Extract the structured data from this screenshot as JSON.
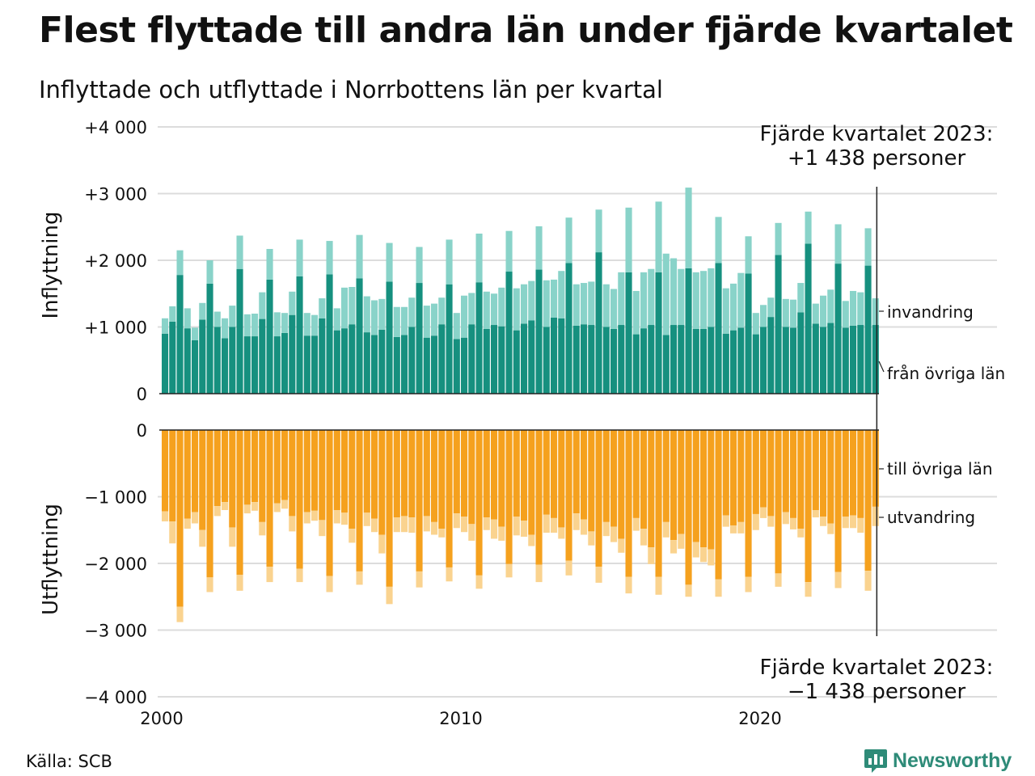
{
  "title": "Flest flyttade till andra län under fjärde kvartalet",
  "subtitle": "Inflyttade och utflyttade i Norrbottens län per kvartal",
  "source": "Källa: SCB",
  "brand": {
    "name": "Newsworthy",
    "icon": "newsworthy-logo-icon"
  },
  "colors": {
    "fran_ovriga_lan": "#16907f",
    "invandring": "#89d3c9",
    "till_ovriga_lan": "#f5a11e",
    "utvandring": "#fad38f",
    "grid": "#dcdcdc"
  },
  "chart_data": {
    "type": "bar",
    "stacked": true,
    "x_start": 2000,
    "x_step": 0.25,
    "xticks": [
      "2000",
      "2010",
      "2020"
    ],
    "xtick_values": [
      2000,
      2010,
      2020
    ],
    "grid": true,
    "top_panel": {
      "ylabel": "Inflyttning",
      "ylim": [
        0,
        4000
      ],
      "yticks": [
        "0",
        "+1 000",
        "+2 000",
        "+3 000",
        "+4 000"
      ],
      "ytick_values": [
        0,
        1000,
        2000,
        3000,
        4000
      ],
      "series": [
        {
          "name": "från övriga län",
          "key": "fran_ovriga_lan",
          "values": [
            900,
            1080,
            1780,
            980,
            800,
            1110,
            1650,
            1000,
            830,
            1000,
            1870,
            860,
            860,
            1120,
            1710,
            860,
            910,
            1180,
            1760,
            870,
            870,
            1130,
            1790,
            950,
            980,
            1040,
            1730,
            920,
            880,
            960,
            1680,
            850,
            880,
            1000,
            1660,
            840,
            870,
            1040,
            1640,
            820,
            840,
            1040,
            1670,
            970,
            1030,
            1010,
            1830,
            950,
            1050,
            1100,
            1860,
            1000,
            1140,
            1130,
            1960,
            1020,
            1040,
            1030,
            2120,
            1000,
            970,
            1030,
            1820,
            890,
            980,
            1030,
            1820,
            880,
            1030,
            1030,
            1880,
            970,
            970,
            1000,
            1960,
            900,
            950,
            990,
            1800,
            890,
            1000,
            1150,
            2080,
            1000,
            990,
            1220,
            2250,
            1050,
            1000,
            1060,
            1950,
            990,
            1020,
            1030,
            1920,
            1030
          ]
        },
        {
          "name": "invandring",
          "key": "invandring",
          "values": [
            230,
            230,
            370,
            300,
            190,
            250,
            350,
            230,
            300,
            320,
            500,
            330,
            340,
            400,
            460,
            360,
            300,
            350,
            550,
            340,
            310,
            300,
            500,
            330,
            610,
            560,
            650,
            540,
            520,
            460,
            580,
            450,
            420,
            440,
            540,
            480,
            480,
            400,
            670,
            390,
            630,
            470,
            730,
            560,
            470,
            580,
            610,
            630,
            590,
            590,
            650,
            700,
            570,
            710,
            680,
            620,
            620,
            650,
            640,
            640,
            600,
            790,
            970,
            650,
            840,
            840,
            1060,
            1220,
            1000,
            840,
            1210,
            850,
            870,
            880,
            690,
            680,
            700,
            820,
            560,
            320,
            330,
            290,
            480,
            420,
            420,
            440,
            480,
            300,
            470,
            500,
            590,
            400,
            520,
            490,
            560,
            400
          ]
        }
      ]
    },
    "bottom_panel": {
      "ylabel": "Utflyttning",
      "ylim": [
        -4000,
        0
      ],
      "yticks": [
        "0",
        "−1 000",
        "−2 000",
        "−3 000",
        "−4 000"
      ],
      "ytick_values": [
        0,
        -1000,
        -2000,
        -3000,
        -4000
      ],
      "series": [
        {
          "name": "till övriga län",
          "key": "till_ovriga_lan",
          "values": [
            -1220,
            -1370,
            -2650,
            -1330,
            -1230,
            -1500,
            -2210,
            -1140,
            -1080,
            -1460,
            -2170,
            -1120,
            -1080,
            -1380,
            -2050,
            -1100,
            -1050,
            -1290,
            -2080,
            -1230,
            -1210,
            -1350,
            -2190,
            -1200,
            -1240,
            -1480,
            -2120,
            -1240,
            -1330,
            -1570,
            -2350,
            -1310,
            -1290,
            -1310,
            -2120,
            -1290,
            -1380,
            -1480,
            -2060,
            -1250,
            -1300,
            -1410,
            -2180,
            -1310,
            -1340,
            -1450,
            -2010,
            -1300,
            -1360,
            -1570,
            -2020,
            -1270,
            -1320,
            -1460,
            -1960,
            -1250,
            -1340,
            -1520,
            -2050,
            -1380,
            -1450,
            -1630,
            -2200,
            -1320,
            -1480,
            -1760,
            -2200,
            -1380,
            -1650,
            -1560,
            -2320,
            -1680,
            -1760,
            -1790,
            -2240,
            -1280,
            -1430,
            -1380,
            -2200,
            -1260,
            -1160,
            -1290,
            -2150,
            -1230,
            -1320,
            -1480,
            -2280,
            -1200,
            -1300,
            -1400,
            -2130,
            -1300,
            -1280,
            -1320,
            -2110,
            -1150
          ]
        },
        {
          "name": "utvandring",
          "key": "utvandring",
          "values": [
            -150,
            -330,
            -230,
            -150,
            -170,
            -250,
            -220,
            -150,
            -120,
            -290,
            -240,
            -130,
            -130,
            -200,
            -230,
            -130,
            -130,
            -230,
            -200,
            -170,
            -150,
            -240,
            -240,
            -200,
            -180,
            -210,
            -200,
            -200,
            -200,
            -280,
            -260,
            -220,
            -240,
            -230,
            -240,
            -230,
            -190,
            -130,
            -210,
            -220,
            -230,
            -250,
            -200,
            -190,
            -290,
            -210,
            -200,
            -280,
            -240,
            -170,
            -260,
            -270,
            -220,
            -170,
            -220,
            -250,
            -230,
            -210,
            -240,
            -210,
            -230,
            -210,
            -250,
            -190,
            -250,
            -250,
            -270,
            -230,
            -200,
            -220,
            -180,
            -230,
            -220,
            -240,
            -260,
            -170,
            -120,
            -170,
            -230,
            -240,
            -160,
            -160,
            -200,
            -180,
            -170,
            -130,
            -220,
            -110,
            -140,
            -160,
            -240,
            -170,
            -190,
            -220,
            -300,
            -290
          ]
        }
      ]
    },
    "annotations": {
      "top_note": [
        "Fjärde kvartalet 2023:",
        "+1 438 personer"
      ],
      "bottom_note": [
        "Fjärde kvartalet 2023:",
        "−1 438 personer"
      ],
      "labels": {
        "invandring": "invandring",
        "fran_ovriga_lan": "från övriga län",
        "till_ovriga_lan": "till övriga län",
        "utvandring": "utvandring"
      }
    }
  }
}
